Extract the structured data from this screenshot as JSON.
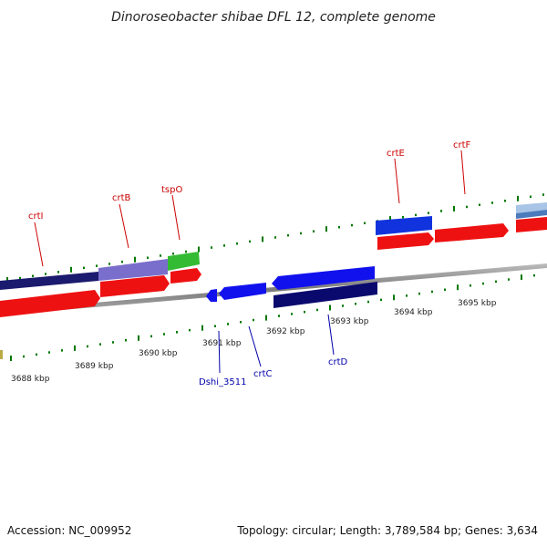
{
  "title": "Dinoroseobacter shibae DFL 12, complete genome",
  "footer": {
    "accession": "Accession: NC_009952",
    "topology": "Topology: circular; Length: 3,789,584 bp; Genes: 3,634"
  },
  "colors": {
    "label_top": "#cc0000",
    "label_bottom": "#0000aa",
    "tick": "#007700",
    "backbone": "#8a8a8a"
  },
  "scale_labels": [
    "3688 kbp",
    "3689 kbp",
    "3690 kbp",
    "3691 kbp",
    "3692 kbp",
    "3693 kbp",
    "3694 kbp",
    "3695 kbp"
  ],
  "genes_top": [
    "crtI",
    "crtB",
    "tspO",
    "crtE",
    "crtF"
  ],
  "genes_bottom": [
    "Dshi_3511",
    "crtC",
    "crtD"
  ]
}
